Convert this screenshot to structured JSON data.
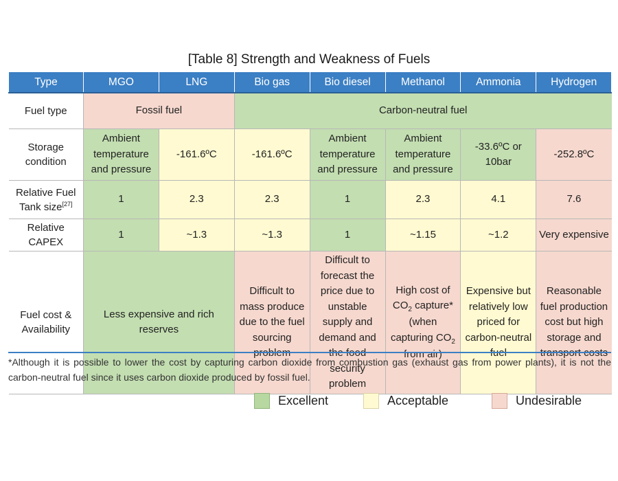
{
  "title": "[Table 8] Strength and Weakness of Fuels",
  "headers": [
    "Type",
    "MGO",
    "LNG",
    "Bio gas",
    "Bio diesel",
    "Methanol",
    "Ammonia",
    "Hydrogen"
  ],
  "rows": {
    "fuel_type": {
      "label": "Fuel type",
      "fossil": "Fossil fuel",
      "neutral": "Carbon-neutral fuel"
    },
    "storage": {
      "label": "Storage condition",
      "mgo": "Ambient temperature and pressure",
      "lng": "-161.6ºC",
      "biogas": "-161.6ºC",
      "biodiesel": "Ambient temperature and pressure",
      "methanol": "Ambient temperature and pressure",
      "ammonia": "-33.6ºC or 10bar",
      "hydrogen": "-252.8ºC"
    },
    "tank": {
      "label": "Relative Fuel Tank size",
      "label_ref": "[27]",
      "mgo": "1",
      "lng": "2.3",
      "biogas": "2.3",
      "biodiesel": "1",
      "methanol": "2.3",
      "ammonia": "4.1",
      "hydrogen": "7.6"
    },
    "capex": {
      "label": "Relative CAPEX",
      "mgo": "1",
      "lng": "~1.3",
      "biogas": "~1.3",
      "biodiesel": "1",
      "methanol": "~1.15",
      "ammonia": "~1.2",
      "hydrogen": "Very expensive"
    },
    "cost": {
      "label": "Fuel cost & Availability",
      "fossil": "Less expensive and rich reserves",
      "biogas": "Difficult to mass produce due to the fuel sourcing problem",
      "biodiesel": "Difficult to forecast the price due to unstable supply and demand and the food security problem",
      "methanol_a": "High cost of CO",
      "methanol_b": "capture* (when capturing CO",
      "methanol_c": "from air)",
      "sub2": "2",
      "ammonia": "Expensive but relatively low priced for carbon-neutral fuel",
      "hydrogen": "Reasonable fuel production cost but high storage and transport costs"
    }
  },
  "footnote": "*Although it is possible to lower the cost by capturing carbon dioxide from combustion gas (exhaust gas from power plants), it is not the carbon-neutral fuel since it uses carbon dioxide produced by fossil fuel.",
  "legend": {
    "excellent": "Excellent",
    "acceptable": "Acceptable",
    "undesirable": "Undesirable"
  },
  "colors": {
    "header": "#3b7fc4",
    "excellent": "#c3deb1",
    "acceptable": "#fffad1",
    "undesirable": "#f6d8ce"
  }
}
